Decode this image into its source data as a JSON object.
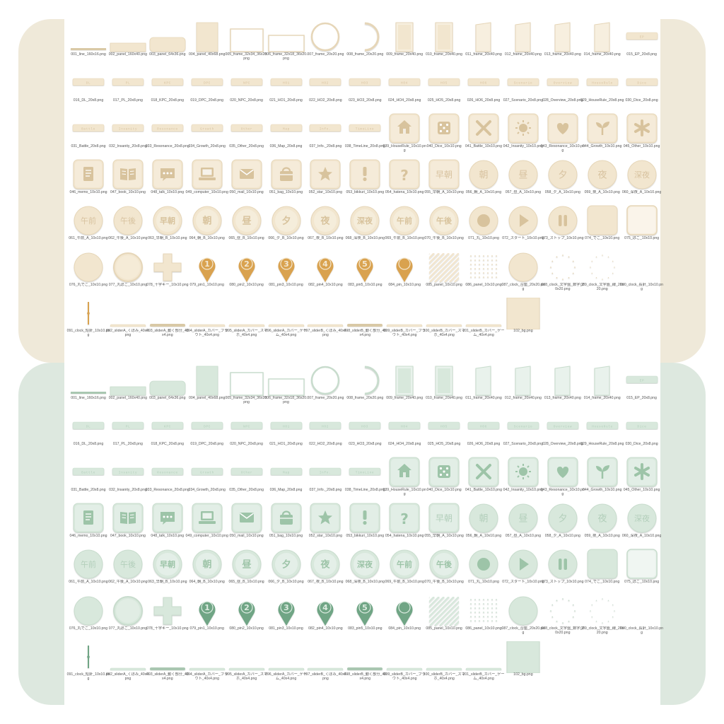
{
  "themes": [
    {
      "name": "cream",
      "bg": "#efe9d9",
      "fill": "#f2e6cf",
      "fill2": "#f7efdf",
      "stroke": "#e6d6b8",
      "icon": "#d8c39d",
      "text": "#d8c3a0",
      "pin": "#d9a24f",
      "pinText": "#f3e7d0",
      "line": "#d9c9a6"
    },
    {
      "name": "green",
      "bg": "#dde8df",
      "fill": "#d8e8dc",
      "fill2": "#e9f2ec",
      "stroke": "#c8dccd",
      "icon": "#9dc4a8",
      "text": "#b3cfbb",
      "pin": "#6fa585",
      "pinText": "#dcebe0",
      "line": "#a9c7b1"
    }
  ],
  "items": [
    {
      "label": "001_line_160x16.png",
      "type": "line"
    },
    {
      "label": "002_panel_160x40.png",
      "type": "hpanel"
    },
    {
      "label": "003_panel_64x36.png",
      "type": "rpanel"
    },
    {
      "label": "004_panel_40x68.png",
      "type": "vpanel"
    },
    {
      "label": "005_frame_32x34_36x28.png",
      "type": "frame"
    },
    {
      "label": "006_frame_32x18_36x20.png",
      "type": "frame2"
    },
    {
      "label": "007_frame_20x20.png",
      "type": "ring"
    },
    {
      "label": "008_frame_20x20.png",
      "type": "halfring"
    },
    {
      "label": "009_frame_20x40.png",
      "type": "tab"
    },
    {
      "label": "010_frame_20x40.png",
      "type": "tab"
    },
    {
      "label": "011_frame_20x40.png",
      "type": "tab2"
    },
    {
      "label": "012_frame_20x40.png",
      "type": "tab2"
    },
    {
      "label": "013_frame_20x40.png",
      "type": "tab2"
    },
    {
      "label": "014_frame_20x40.png",
      "type": "tab2"
    },
    {
      "label": "015_EP_20x8.png",
      "type": "chip",
      "text": "EP"
    },
    {
      "label": "016_DL_20x8.png",
      "type": "chip",
      "text": "DL"
    },
    {
      "label": "017_PL_20x8.png",
      "type": "chip",
      "text": "PL"
    },
    {
      "label": "018_KPC_20x8.png",
      "type": "chip",
      "text": "KPC"
    },
    {
      "label": "019_DPC_20x8.png",
      "type": "chip",
      "text": "DPC"
    },
    {
      "label": "020_NPC_20x8.png",
      "type": "chip",
      "text": "NPC"
    },
    {
      "label": "021_HO1_20x8.png",
      "type": "chip",
      "text": "HO1"
    },
    {
      "label": "022_HO2_20x8.png",
      "type": "chip",
      "text": "HO2"
    },
    {
      "label": "023_HO3_20x8.png",
      "type": "chip",
      "text": "HO3"
    },
    {
      "label": "024_HO4_20x8.png",
      "type": "chip",
      "text": "HO4"
    },
    {
      "label": "025_HO5_20x8.png",
      "type": "chip",
      "text": "HO5"
    },
    {
      "label": "026_HO6_20x8.png",
      "type": "chip",
      "text": "HO6"
    },
    {
      "label": "027_Scenario_20x8.png",
      "type": "chip",
      "text": "Scenario"
    },
    {
      "label": "028_Overview_20x8.png",
      "type": "chip",
      "text": "Overview"
    },
    {
      "label": "029_HouseRule_20x8.png",
      "type": "chip",
      "text": "HouseRule"
    },
    {
      "label": "030_Dice_20x8.png",
      "type": "chip",
      "text": "Dice"
    },
    {
      "label": "031_Battle_20x8.png",
      "type": "chip",
      "text": "Battle"
    },
    {
      "label": "032_Insanity_20x8.png",
      "type": "chip",
      "text": "Insanity"
    },
    {
      "label": "033_Resonance_20x8.png",
      "type": "chip",
      "text": "Resonance"
    },
    {
      "label": "034_Growth_20x8.png",
      "type": "chip",
      "text": "Growth"
    },
    {
      "label": "035_Other_20x8.png",
      "type": "chip",
      "text": "Other"
    },
    {
      "label": "036_Map_20x8.png",
      "type": "chip",
      "text": "Map"
    },
    {
      "label": "037_Info._20x8.png",
      "type": "chip",
      "text": "Info."
    },
    {
      "label": "038_TimeLine_20x8.png",
      "type": "chip",
      "text": "TimeLine"
    },
    {
      "label": "039_HouseRule_10x10.png",
      "type": "icon",
      "icon": "house-icon"
    },
    {
      "label": "040_Dice_10x10.png",
      "type": "icon",
      "icon": "dice-icon"
    },
    {
      "label": "041_Battle_10x10.png",
      "type": "icon",
      "icon": "swords-icon"
    },
    {
      "label": "042_Insanity_10x10.png",
      "type": "icon",
      "icon": "sun-icon"
    },
    {
      "label": "043_Resonance_10x10.png",
      "type": "icon",
      "icon": "heart-icon"
    },
    {
      "label": "044_Growth_10x10.png",
      "type": "icon",
      "icon": "sprout-icon"
    },
    {
      "label": "045_Other_10x10.png",
      "type": "icon",
      "icon": "asterisk-icon"
    },
    {
      "label": "046_memo_10x10.png",
      "type": "icon",
      "icon": "memo-icon"
    },
    {
      "label": "047_book_10x10.png",
      "type": "icon",
      "icon": "book-icon"
    },
    {
      "label": "048_talk_10x10.png",
      "type": "icon",
      "icon": "chat-icon"
    },
    {
      "label": "049_computer_10x10.png",
      "type": "icon",
      "icon": "computer-icon"
    },
    {
      "label": "050_mail_10x10.png",
      "type": "icon",
      "icon": "mail-icon"
    },
    {
      "label": "051_bag_10x10.png",
      "type": "icon",
      "icon": "bag-icon"
    },
    {
      "label": "052_star_10x10.png",
      "type": "icon",
      "icon": "star-icon"
    },
    {
      "label": "053_bikkuri_10x10.png",
      "type": "icon",
      "icon": "exclamation-icon"
    },
    {
      "label": "054_hatena_10x10.png",
      "type": "icon",
      "icon": "question-icon"
    },
    {
      "label": "055_早朝_A_10x10.png",
      "type": "sqtext",
      "text": "早朝"
    },
    {
      "label": "056_朝_A_10x10.png",
      "type": "circtext",
      "text": "朝"
    },
    {
      "label": "057_昼_A_10x10.png",
      "type": "circtext",
      "text": "昼"
    },
    {
      "label": "058_夕_A_10x10.png",
      "type": "circtext",
      "text": "夕"
    },
    {
      "label": "059_夜_A_10x10.png",
      "type": "circtext",
      "text": "夜"
    },
    {
      "label": "060_深夜_A_10x10.png",
      "type": "circtext",
      "text": "深夜"
    },
    {
      "label": "061_午前_A_10x10.png",
      "type": "circtext",
      "text": "午前"
    },
    {
      "label": "062_午後_A_10x10.png",
      "type": "circtext",
      "text": "午後"
    },
    {
      "label": "063_早朝_B_10x10.png",
      "type": "circtextB",
      "text": "早朝"
    },
    {
      "label": "064_朝_B_10x10.png",
      "type": "circtextB",
      "text": "朝"
    },
    {
      "label": "065_昼_B_10x10.png",
      "type": "circtextB",
      "text": "昼"
    },
    {
      "label": "066_夕_B_10x10.png",
      "type": "circtextB",
      "text": "夕"
    },
    {
      "label": "067_夜_B_10x10.png",
      "type": "circtextB",
      "text": "夜"
    },
    {
      "label": "068_深夜_B_10x10.png",
      "type": "circtextB",
      "text": "深夜"
    },
    {
      "label": "069_午前_B_10x10.png",
      "type": "circtextB",
      "text": "午前"
    },
    {
      "label": "070_午後_B_10x10.png",
      "type": "circtextB",
      "text": "午後"
    },
    {
      "label": "071_丸_10x10.png",
      "type": "circdot"
    },
    {
      "label": "072_スタート_10x10.png",
      "type": "circplay"
    },
    {
      "label": "073_ストップ_10x10.png",
      "type": "circpause"
    },
    {
      "label": "074_でこ_10x10.png",
      "type": "sqplain"
    },
    {
      "label": "075_ぼこ_10x10.png",
      "type": "sqsunk"
    },
    {
      "label": "076_丸でこ_10x10.png",
      "type": "circplain"
    },
    {
      "label": "077_丸ぼこ_10x10.png",
      "type": "circsunk"
    },
    {
      "label": "078_十字キー_10x10.png",
      "type": "cross"
    },
    {
      "label": "079_pin1_10x10.png",
      "type": "pin",
      "text": "1"
    },
    {
      "label": "080_pin2_10x10.png",
      "type": "pin",
      "text": "2"
    },
    {
      "label": "081_pin3_10x10.png",
      "type": "pin",
      "text": "3"
    },
    {
      "label": "082_pin4_10x10.png",
      "type": "pin",
      "text": "4"
    },
    {
      "label": "083_pin5_10x10.png",
      "type": "pin",
      "text": "5"
    },
    {
      "label": "084_pin_10x10.png",
      "type": "pin",
      "text": ""
    },
    {
      "label": "085_panel_10x10.png",
      "type": "stripes"
    },
    {
      "label": "086_panel_10x10.png",
      "type": "dots"
    },
    {
      "label": "087_clock_台座_20x20.png",
      "type": "circplain"
    },
    {
      "label": "088_clock_文字盤_数字_20x20.png",
      "type": "clockface"
    },
    {
      "label": "089_clock_文字盤_線_20x20.png",
      "type": "clockface2"
    },
    {
      "label": "090_clock_長針_10x10.png",
      "type": "hand"
    },
    {
      "label": "091_clock_短針_10x10.png",
      "type": "hand2"
    },
    {
      "label": "092_sliderA_くぼみ_40x4.png",
      "type": "slider"
    },
    {
      "label": "093_sliderA_動く部分_40x4.png",
      "type": "slider2"
    },
    {
      "label": "094_sliderA_カバー_ブラウト_40x4.png",
      "type": "slider"
    },
    {
      "label": "095_sliderA_カバー_スマホ_40x4.png",
      "type": "slider"
    },
    {
      "label": "096_sliderA_カバー_ゲーム_40x4.png",
      "type": "slider"
    },
    {
      "label": "097_sliderB_くぼみ_40x4.png",
      "type": "slider"
    },
    {
      "label": "098_sliderB_動く部分_40x4.png",
      "type": "slider2"
    },
    {
      "label": "099_sliderB_カバー_ブラウト_40x4.png",
      "type": "slider"
    },
    {
      "label": "100_sliderB_カバー_スマホ_40x4.png",
      "type": "slider"
    },
    {
      "label": "101_sliderB_カバー_ゲーム_40x4.png",
      "type": "slider"
    },
    {
      "label": "102_bg.png",
      "type": "bg"
    }
  ]
}
